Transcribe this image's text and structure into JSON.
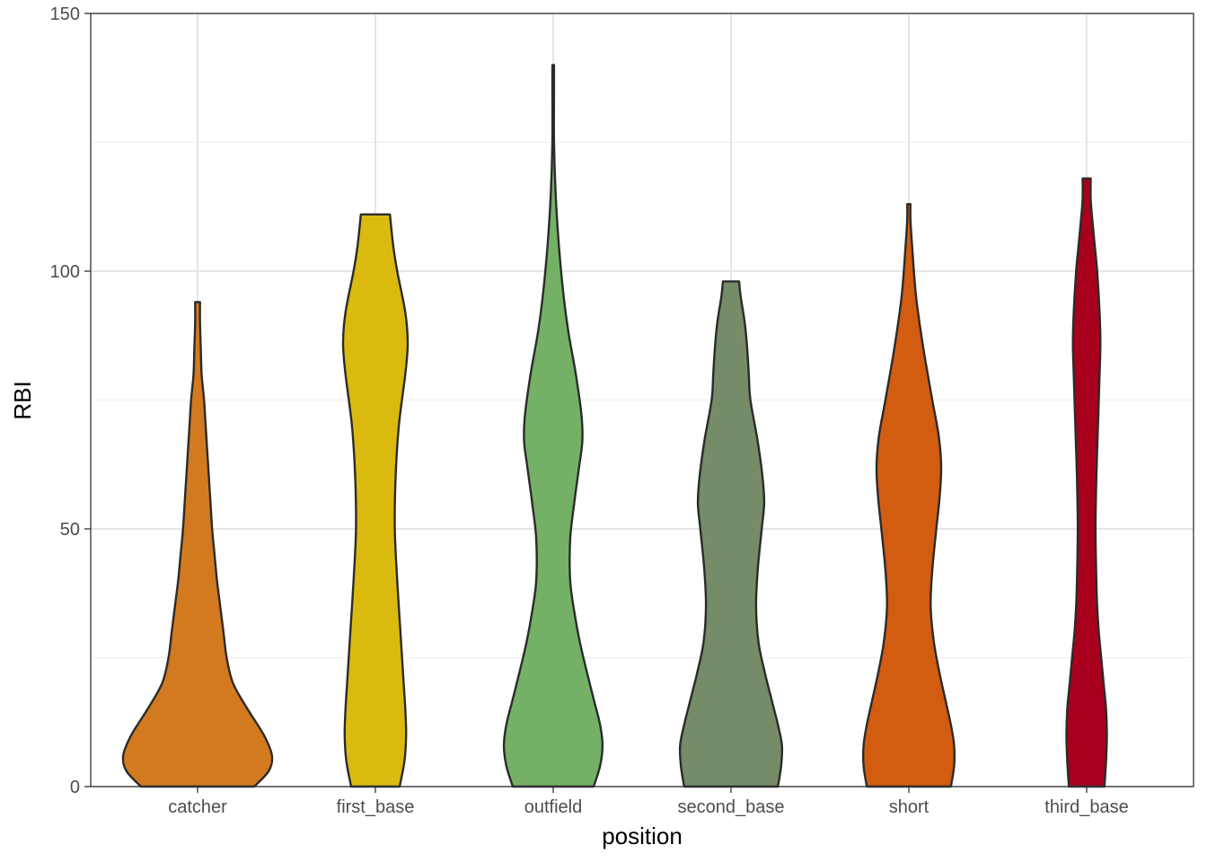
{
  "chart_data": {
    "type": "violin",
    "xlabel": "position",
    "ylabel": "RBI",
    "ylim": [
      0,
      150
    ],
    "yticks": [
      0,
      50,
      100,
      150
    ],
    "yminor": [
      25,
      75,
      125
    ],
    "grid": true,
    "categories": [
      "catcher",
      "first_base",
      "outfield",
      "second_base",
      "short",
      "third_base"
    ],
    "colors": [
      "#D37A20",
      "#DBBA10",
      "#74B166",
      "#768B67",
      "#D25C10",
      "#A8001C"
    ],
    "violins": [
      {
        "category": "catcher",
        "min": 0,
        "max": 94,
        "profile": [
          [
            0,
            0.7
          ],
          [
            3,
            0.88
          ],
          [
            6,
            0.92
          ],
          [
            10,
            0.82
          ],
          [
            15,
            0.62
          ],
          [
            20,
            0.44
          ],
          [
            25,
            0.36
          ],
          [
            30,
            0.32
          ],
          [
            35,
            0.28
          ],
          [
            40,
            0.24
          ],
          [
            45,
            0.21
          ],
          [
            50,
            0.18
          ],
          [
            55,
            0.16
          ],
          [
            60,
            0.14
          ],
          [
            65,
            0.12
          ],
          [
            70,
            0.1
          ],
          [
            75,
            0.08
          ],
          [
            80,
            0.05
          ],
          [
            85,
            0.04
          ],
          [
            90,
            0.03
          ],
          [
            94,
            0.03
          ]
        ]
      },
      {
        "category": "first_base",
        "min": 0,
        "max": 111,
        "profile": [
          [
            0,
            0.3
          ],
          [
            5,
            0.36
          ],
          [
            10,
            0.38
          ],
          [
            15,
            0.37
          ],
          [
            20,
            0.35
          ],
          [
            25,
            0.33
          ],
          [
            30,
            0.31
          ],
          [
            40,
            0.27
          ],
          [
            50,
            0.24
          ],
          [
            60,
            0.25
          ],
          [
            70,
            0.29
          ],
          [
            80,
            0.37
          ],
          [
            86,
            0.4
          ],
          [
            92,
            0.37
          ],
          [
            100,
            0.27
          ],
          [
            105,
            0.22
          ],
          [
            111,
            0.18
          ]
        ]
      },
      {
        "category": "outfield",
        "min": 0,
        "max": 140,
        "profile": [
          [
            0,
            0.5
          ],
          [
            4,
            0.58
          ],
          [
            8,
            0.61
          ],
          [
            12,
            0.58
          ],
          [
            17,
            0.5
          ],
          [
            22,
            0.42
          ],
          [
            28,
            0.33
          ],
          [
            34,
            0.26
          ],
          [
            40,
            0.21
          ],
          [
            48,
            0.21
          ],
          [
            55,
            0.26
          ],
          [
            62,
            0.32
          ],
          [
            67,
            0.36
          ],
          [
            72,
            0.35
          ],
          [
            80,
            0.28
          ],
          [
            88,
            0.19
          ],
          [
            95,
            0.13
          ],
          [
            105,
            0.07
          ],
          [
            115,
            0.03
          ],
          [
            125,
            0.01
          ],
          [
            135,
            0.01
          ],
          [
            140,
            0.01
          ]
        ]
      },
      {
        "category": "second_base",
        "min": 0,
        "max": 98,
        "profile": [
          [
            0,
            0.58
          ],
          [
            4,
            0.62
          ],
          [
            8,
            0.63
          ],
          [
            12,
            0.58
          ],
          [
            17,
            0.5
          ],
          [
            22,
            0.42
          ],
          [
            28,
            0.34
          ],
          [
            35,
            0.31
          ],
          [
            42,
            0.33
          ],
          [
            50,
            0.38
          ],
          [
            55,
            0.41
          ],
          [
            60,
            0.39
          ],
          [
            67,
            0.33
          ],
          [
            75,
            0.24
          ],
          [
            80,
            0.22
          ],
          [
            85,
            0.2
          ],
          [
            90,
            0.17
          ],
          [
            95,
            0.12
          ],
          [
            98,
            0.1
          ]
        ]
      },
      {
        "category": "short",
        "min": 0,
        "max": 113,
        "profile": [
          [
            0,
            0.52
          ],
          [
            4,
            0.56
          ],
          [
            8,
            0.56
          ],
          [
            12,
            0.52
          ],
          [
            17,
            0.45
          ],
          [
            22,
            0.38
          ],
          [
            28,
            0.31
          ],
          [
            35,
            0.27
          ],
          [
            42,
            0.29
          ],
          [
            50,
            0.34
          ],
          [
            56,
            0.38
          ],
          [
            62,
            0.4
          ],
          [
            68,
            0.37
          ],
          [
            75,
            0.29
          ],
          [
            85,
            0.18
          ],
          [
            95,
            0.09
          ],
          [
            105,
            0.04
          ],
          [
            110,
            0.02
          ],
          [
            113,
            0.02
          ]
        ]
      },
      {
        "category": "third_base",
        "min": 0,
        "max": 118,
        "profile": [
          [
            0,
            0.22
          ],
          [
            5,
            0.24
          ],
          [
            10,
            0.25
          ],
          [
            15,
            0.24
          ],
          [
            20,
            0.21
          ],
          [
            25,
            0.18
          ],
          [
            30,
            0.15
          ],
          [
            35,
            0.13
          ],
          [
            40,
            0.12
          ],
          [
            50,
            0.11
          ],
          [
            60,
            0.12
          ],
          [
            70,
            0.14
          ],
          [
            80,
            0.16
          ],
          [
            86,
            0.17
          ],
          [
            92,
            0.16
          ],
          [
            100,
            0.13
          ],
          [
            105,
            0.1
          ],
          [
            110,
            0.07
          ],
          [
            114,
            0.05
          ],
          [
            118,
            0.05
          ]
        ]
      }
    ]
  }
}
